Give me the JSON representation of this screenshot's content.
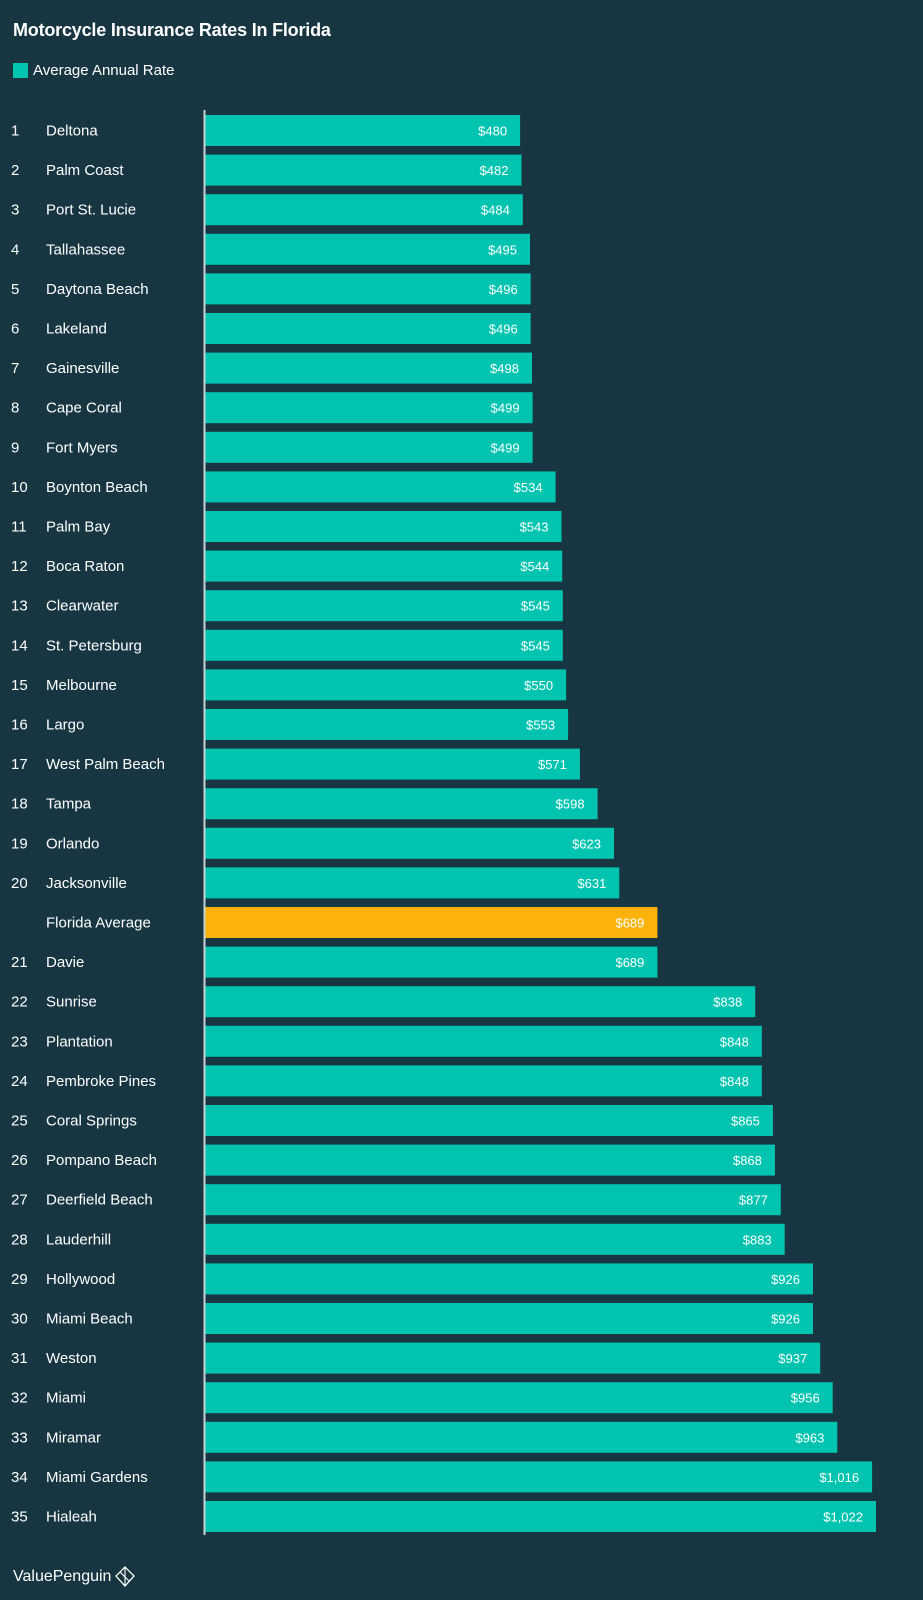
{
  "colors": {
    "background": "#173642",
    "bar": "#00c4b0",
    "highlight": "#fbb30c",
    "axis": "#c8d3d6"
  },
  "brand": {
    "name": "ValuePenguin",
    "icon": "valuepenguin-logo-icon"
  },
  "chart_data": {
    "type": "bar",
    "orientation": "horizontal",
    "title": "Motorcycle Insurance Rates In Florida",
    "legend": [
      {
        "label": "Average Annual Rate",
        "color": "#00c4b0"
      }
    ],
    "xlabel": "",
    "ylabel": "",
    "xlim": [
      0,
      1022
    ],
    "rows": [
      {
        "rank": "1",
        "city": "Deltona",
        "value": 480,
        "label": "$480"
      },
      {
        "rank": "2",
        "city": "Palm Coast",
        "value": 482,
        "label": "$482"
      },
      {
        "rank": "3",
        "city": "Port St. Lucie",
        "value": 484,
        "label": "$484"
      },
      {
        "rank": "4",
        "city": "Tallahassee",
        "value": 495,
        "label": "$495"
      },
      {
        "rank": "5",
        "city": "Daytona Beach",
        "value": 496,
        "label": "$496"
      },
      {
        "rank": "6",
        "city": "Lakeland",
        "value": 496,
        "label": "$496"
      },
      {
        "rank": "7",
        "city": "Gainesville",
        "value": 498,
        "label": "$498"
      },
      {
        "rank": "8",
        "city": "Cape Coral",
        "value": 499,
        "label": "$499"
      },
      {
        "rank": "9",
        "city": "Fort Myers",
        "value": 499,
        "label": "$499"
      },
      {
        "rank": "10",
        "city": "Boynton Beach",
        "value": 534,
        "label": "$534"
      },
      {
        "rank": "11",
        "city": "Palm Bay",
        "value": 543,
        "label": "$543"
      },
      {
        "rank": "12",
        "city": "Boca Raton",
        "value": 544,
        "label": "$544"
      },
      {
        "rank": "13",
        "city": "Clearwater",
        "value": 545,
        "label": "$545"
      },
      {
        "rank": "14",
        "city": "St. Petersburg",
        "value": 545,
        "label": "$545"
      },
      {
        "rank": "15",
        "city": "Melbourne",
        "value": 550,
        "label": "$550"
      },
      {
        "rank": "16",
        "city": "Largo",
        "value": 553,
        "label": "$553"
      },
      {
        "rank": "17",
        "city": "West Palm Beach",
        "value": 571,
        "label": "$571"
      },
      {
        "rank": "18",
        "city": "Tampa",
        "value": 598,
        "label": "$598"
      },
      {
        "rank": "19",
        "city": "Orlando",
        "value": 623,
        "label": "$623"
      },
      {
        "rank": "20",
        "city": "Jacksonville",
        "value": 631,
        "label": "$631"
      },
      {
        "rank": "",
        "city": "Florida Average",
        "value": 689,
        "label": "$689",
        "highlight": true
      },
      {
        "rank": "21",
        "city": "Davie",
        "value": 689,
        "label": "$689"
      },
      {
        "rank": "22",
        "city": "Sunrise",
        "value": 838,
        "label": "$838"
      },
      {
        "rank": "23",
        "city": "Plantation",
        "value": 848,
        "label": "$848"
      },
      {
        "rank": "24",
        "city": "Pembroke Pines",
        "value": 848,
        "label": "$848"
      },
      {
        "rank": "25",
        "city": "Coral Springs",
        "value": 865,
        "label": "$865"
      },
      {
        "rank": "26",
        "city": "Pompano Beach",
        "value": 868,
        "label": "$868"
      },
      {
        "rank": "27",
        "city": "Deerfield Beach",
        "value": 877,
        "label": "$877"
      },
      {
        "rank": "28",
        "city": "Lauderhill",
        "value": 883,
        "label": "$883"
      },
      {
        "rank": "29",
        "city": "Hollywood",
        "value": 926,
        "label": "$926"
      },
      {
        "rank": "30",
        "city": "Miami Beach",
        "value": 926,
        "label": "$926"
      },
      {
        "rank": "31",
        "city": "Weston",
        "value": 937,
        "label": "$937"
      },
      {
        "rank": "32",
        "city": "Miami",
        "value": 956,
        "label": "$956"
      },
      {
        "rank": "33",
        "city": "Miramar",
        "value": 963,
        "label": "$963"
      },
      {
        "rank": "34",
        "city": "Miami Gardens",
        "value": 1016,
        "label": "$1,016"
      },
      {
        "rank": "35",
        "city": "Hialeah",
        "value": 1022,
        "label": "$1,022"
      }
    ]
  }
}
